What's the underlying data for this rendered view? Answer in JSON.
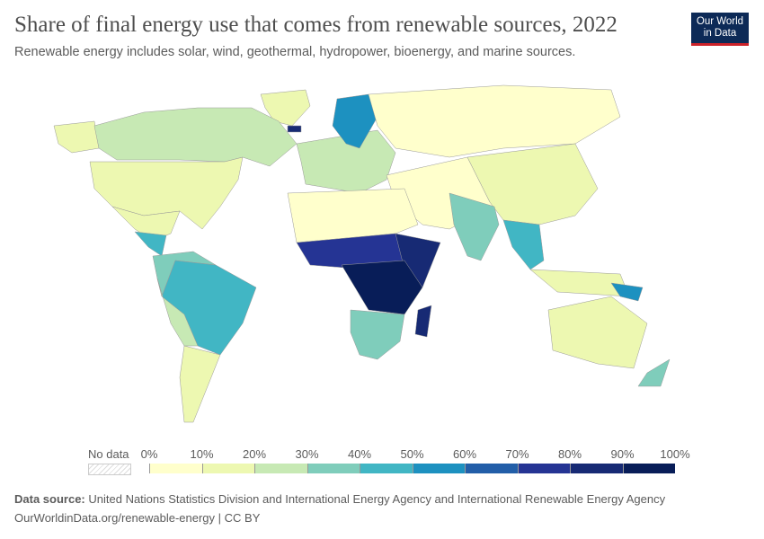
{
  "header": {
    "title": "Share of final energy use that comes from renewable sources, 2022",
    "subtitle": "Renewable energy includes solar, wind, geothermal, hydropower, bioenergy, and marine sources.",
    "logo": "Our World in Data"
  },
  "legend": {
    "no_data_label": "No data",
    "ticks": [
      "0%",
      "10%",
      "20%",
      "30%",
      "40%",
      "50%",
      "60%",
      "70%",
      "80%",
      "90%",
      "100%"
    ],
    "colors": [
      "#ffffcc",
      "#edf8b1",
      "#c7e9b4",
      "#7fcdbb",
      "#41b6c4",
      "#1d91c0",
      "#225ea8",
      "#253494",
      "#172a74",
      "#081d58"
    ]
  },
  "chart_data": {
    "type": "choropleth",
    "unit": "%",
    "range": [
      0,
      100
    ],
    "regions": {
      "greenland": 15,
      "alaska": 10,
      "canada": 25,
      "usa": 12,
      "mexico": 10,
      "central_america": 45,
      "northern_south_america": 35,
      "brazil": 48,
      "andes": 20,
      "southern_cone": 15,
      "europe": 20,
      "scandinavia": 55,
      "iceland": 80,
      "russia": 6,
      "middle_east_central_asia": 2,
      "east_asia": 12,
      "india": 33,
      "southeast_asia": 40,
      "indonesia": 15,
      "north_africa": 3,
      "west_africa": 70,
      "east_africa": 85,
      "central_africa": 92,
      "southern_africa": 30,
      "madagascar": 85,
      "australia": 10,
      "new_zealand": 35,
      "papua_new_guinea": 50
    }
  },
  "footer": {
    "source_label": "Data source:",
    "source": "United Nations Statistics Division and International Energy Agency and International Renewable Energy Agency",
    "url": "OurWorldinData.org/renewable-energy | CC BY"
  }
}
